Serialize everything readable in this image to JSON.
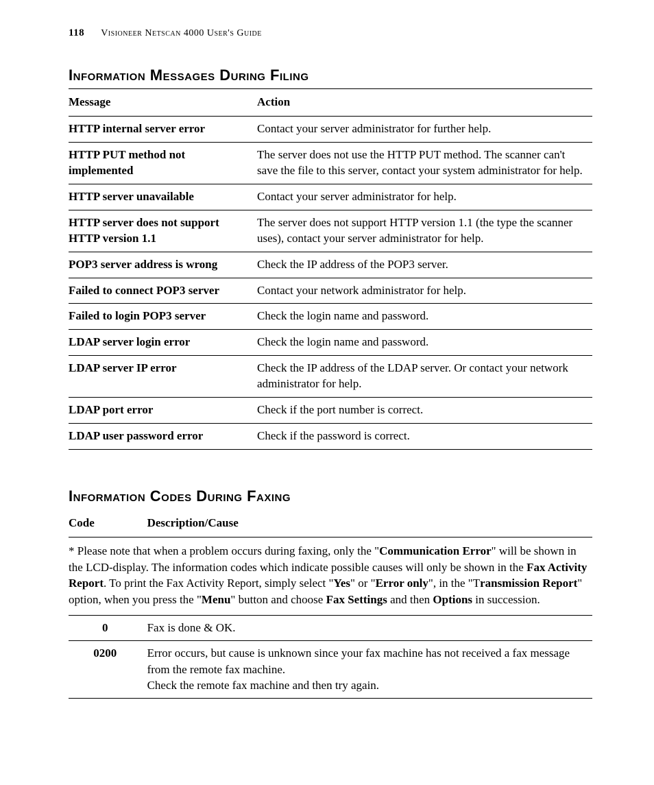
{
  "header": {
    "page_number": "118",
    "running_title": "Visioneer Netscan 4000 User's Guide"
  },
  "section1": {
    "title": "Information Messages During Filing",
    "columns": [
      "Message",
      "Action"
    ],
    "rows": [
      {
        "msg": "HTTP internal server error",
        "action": "Contact your server administrator for further help."
      },
      {
        "msg": "HTTP PUT method not implemented",
        "action": "The server does not use the HTTP PUT method. The scanner can't save the file to this server, contact your system administrator for help."
      },
      {
        "msg": "HTTP server unavailable",
        "action": "Contact your server administrator for help."
      },
      {
        "msg": "HTTP server does not support HTTP version 1.1",
        "action": "The server does not support HTTP version 1.1 (the type the scanner uses), contact your server administrator for help."
      },
      {
        "msg": "POP3 server address is wrong",
        "action": "Check the IP address of the POP3 server."
      },
      {
        "msg": "Failed to connect POP3 server",
        "action": "Contact your network administrator for help."
      },
      {
        "msg": "Failed to login POP3 server",
        "action": "Check the login name and password."
      },
      {
        "msg": "LDAP server login error",
        "action": "Check the login name and password."
      },
      {
        "msg": "LDAP server IP error",
        "action": "Check the IP address of the LDAP server. Or contact your network administrator for help."
      },
      {
        "msg": "LDAP port error",
        "action": "Check if the port number is correct."
      },
      {
        "msg": "LDAP user password error",
        "action": "Check if the password is correct."
      }
    ]
  },
  "section2": {
    "title": "Information Codes During Faxing",
    "columns": [
      "Code",
      "Description/Cause"
    ],
    "note": {
      "pre": "* Please note that when a problem occurs during faxing, only the \"",
      "b1": "Communication Error",
      "t1": "\" will be shown in the LCD-display. The information codes which indicate possible causes will only be shown in the ",
      "b2": "Fax Activity Report",
      "t2": ".   To print the Fax Activity Report, simply select \"",
      "b3": "Yes",
      "t3": "\" or \"",
      "b4": "Error only",
      "t4": "\", in the \"T",
      "b5": "ransmission Report",
      "t5": "\" option, when you press the \"",
      "b6": "Menu",
      "t6": "\" button and choose ",
      "b7": "Fax Settings",
      "t7": " and then ",
      "b8": "Options",
      "t8": " in succession."
    },
    "rows": [
      {
        "code": "0",
        "desc": "Fax is done & OK."
      },
      {
        "code": "0200",
        "desc": "Error occurs, but cause is unknown since your fax machine has not received a fax message from the remote fax machine.\nCheck the remote fax machine and then try again."
      }
    ]
  },
  "style": {
    "text_color": "#000000",
    "background_color": "#ffffff",
    "rule_color": "#000000",
    "body_fontsize_pt": 13,
    "heading_fontsize_pt": 17
  }
}
